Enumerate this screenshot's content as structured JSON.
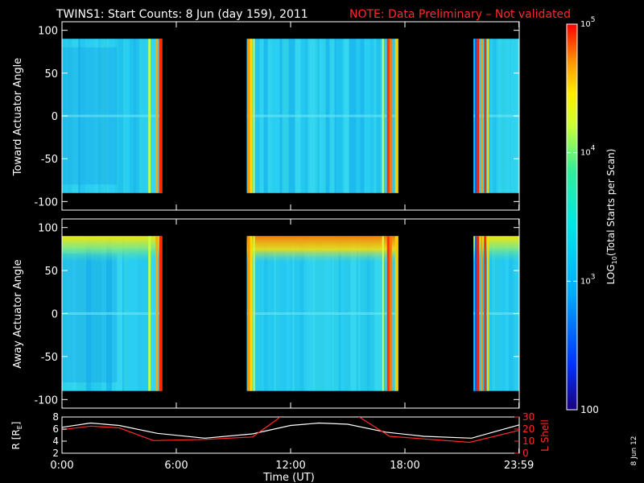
{
  "title": {
    "main": "TWINS1: Start Counts:  8 Jun (day 159), 2011",
    "note": "NOTE: Data Preliminary – Not validated"
  },
  "colors": {
    "background": "#000000",
    "axes": "#ffffff",
    "note": "#ff2a2a",
    "r_line": "#ffffff",
    "lshell_line": "#ff2a2a"
  },
  "chart_data": [
    {
      "type": "heatmap",
      "ylabel": "Toward Actuator Angle",
      "xlim": [
        0,
        24
      ],
      "ylim": [
        -110,
        110
      ],
      "yticks": [
        -100,
        -50,
        0,
        50,
        100
      ],
      "data_y_range": [
        -90,
        90
      ],
      "data_intervals_hours": [
        [
          0.0,
          5.25
        ],
        [
          9.7,
          17.65
        ],
        [
          21.6,
          24.0
        ]
      ],
      "colorscale": "rainbow, log10 of counts"
    },
    {
      "type": "heatmap",
      "ylabel": "Away Actuator Angle",
      "xlim": [
        0,
        24
      ],
      "ylim": [
        -110,
        110
      ],
      "yticks": [
        -100,
        -50,
        0,
        50,
        100
      ],
      "data_y_range": [
        -90,
        90
      ],
      "data_intervals_hours": [
        [
          0.0,
          5.25
        ],
        [
          9.7,
          17.65
        ],
        [
          21.6,
          24.0
        ]
      ],
      "colorscale": "rainbow, log10 of counts"
    },
    {
      "type": "line",
      "xlabel": "Time (UT)",
      "ylabel": "R [RE]",
      "ylabel_parts": {
        "R": "R [R",
        "sub": "E",
        "close": "]"
      },
      "y2label": "L Shell",
      "xlim": [
        0,
        24
      ],
      "ylim": [
        2,
        8
      ],
      "y2lim": [
        0,
        30
      ],
      "xtick_hours": [
        0,
        6,
        12,
        18,
        23.983
      ],
      "xtick_labels": [
        "0:00",
        "6:00",
        "12:00",
        "18:00",
        "23:59"
      ],
      "yticks": [
        2,
        4,
        6,
        8
      ],
      "y2ticks": [
        0,
        10,
        20,
        30
      ],
      "series": [
        {
          "name": "R",
          "axis": "left",
          "x": [
            0,
            1.5,
            3,
            5,
            7.5,
            10,
            12,
            13.5,
            15,
            17,
            19,
            21.5,
            24
          ],
          "y": [
            6.3,
            7.0,
            6.6,
            5.3,
            4.5,
            5.2,
            6.6,
            7.0,
            6.8,
            5.5,
            4.8,
            4.5,
            6.7
          ]
        },
        {
          "name": "L Shell",
          "axis": "right",
          "x": [
            0,
            1.5,
            3,
            4.8,
            7.5,
            10,
            11.2,
            11.6,
            15.4,
            16.0,
            17.2,
            21.4,
            24
          ],
          "y": [
            19.5,
            22.5,
            21,
            10.5,
            11.5,
            13.5,
            27,
            32,
            32,
            26,
            14,
            9,
            19
          ]
        }
      ]
    }
  ],
  "colorbar": {
    "label": "LOG10(Total Starts per Scan)",
    "label_parts": {
      "pre": "LOG",
      "sub": "10",
      "post": "(Total Starts per Scan)"
    },
    "ticks": [
      {
        "base": "10",
        "exp": "5",
        "value": 100000
      },
      {
        "base": "10",
        "exp": "4",
        "value": 10000
      },
      {
        "base": "10",
        "exp": "3",
        "value": 1000
      },
      {
        "base": "100",
        "exp": "",
        "value": 100
      }
    ],
    "range": [
      100,
      100000
    ]
  },
  "footer": {
    "date_stamp": "8 Jun 12"
  }
}
